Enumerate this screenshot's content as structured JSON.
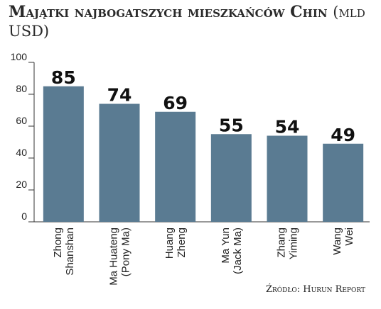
{
  "chart_data": {
    "type": "bar",
    "title_main": "Majątki najbogatszych mieszkańców Chin",
    "title_unit": "(mld USD)",
    "categories": [
      [
        "Zhong",
        "Shanshan"
      ],
      [
        "Ma Huateng",
        "(Pony Ma)"
      ],
      [
        "Huang",
        "Zheng"
      ],
      [
        "Ma Yun",
        "(Jack Ma)"
      ],
      [
        "Zhang",
        "Yiming"
      ],
      [
        "Wang",
        "Wei"
      ]
    ],
    "values": [
      85,
      74,
      69,
      55,
      54,
      49
    ],
    "ylim": [
      0,
      100
    ],
    "yticks": [
      0,
      20,
      40,
      60,
      80,
      100
    ],
    "grid": false,
    "bar_color": "#5a7b92",
    "source": "Źródło: Hurun Report"
  }
}
